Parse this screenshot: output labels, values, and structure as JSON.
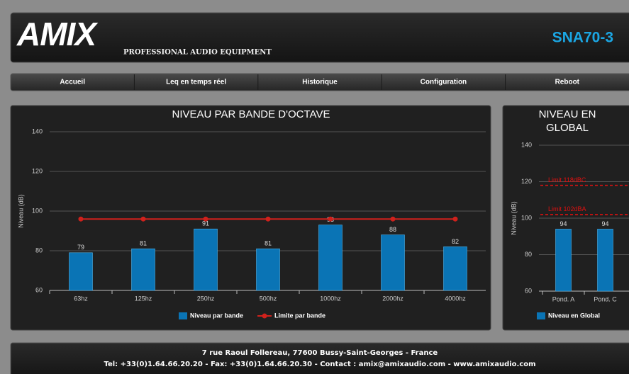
{
  "header": {
    "logo": "AMIX",
    "tagline": "PROFESSIONAL AUDIO EQUIPMENT",
    "device": "SNA70-3"
  },
  "nav": [
    "Accueil",
    "Leq en temps réel",
    "Historique",
    "Configuration",
    "Reboot"
  ],
  "charts": [
    {
      "type": "bar",
      "title": "NIVEAU PAR BANDE D'OCTAVE",
      "ylabel": "Niveau (dB)",
      "categories": [
        "63hz",
        "125hz",
        "250hz",
        "500hz",
        "1000hz",
        "2000hz",
        "4000hz"
      ],
      "series": [
        {
          "name": "Niveau par bande",
          "color": "#0a74b5",
          "values": [
            79,
            81,
            91,
            81,
            93,
            88,
            82
          ]
        },
        {
          "name": "Limite par bande",
          "type": "line",
          "color": "#d0211c",
          "values": [
            96,
            96,
            96,
            96,
            96,
            96,
            96
          ]
        }
      ],
      "ylim": [
        60,
        140
      ],
      "yticks": [
        60,
        80,
        100,
        120,
        140
      ],
      "grid": true
    },
    {
      "type": "bar",
      "title": "NIVEAU EN GLOBAL",
      "ylabel": "Niveau (dB)",
      "categories": [
        "Pond. A",
        "Pond. C"
      ],
      "series": [
        {
          "name": "Niveau en Global",
          "color": "#0a74b5",
          "values": [
            94,
            94
          ]
        }
      ],
      "annotations": [
        {
          "label": "Limit 118dBC",
          "value": 118
        },
        {
          "label": "Limit 102dBA",
          "value": 102
        }
      ],
      "annotation_color": "#e01010",
      "ylim": [
        60,
        140
      ],
      "yticks": [
        60,
        80,
        100,
        120,
        140
      ],
      "grid": true
    }
  ],
  "footer": [
    "7 rue Raoul Follereau, 77600 Bussy-Saint-Georges - France",
    "Tel: +33(0)1.64.66.20.20 - Fax: +33(0)1.64.66.20.30 - Contact : amix@amixaudio.com - www.amixaudio.com"
  ]
}
